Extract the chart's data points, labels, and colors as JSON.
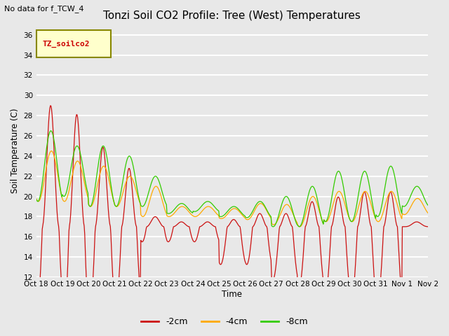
{
  "title": "Tonzi Soil CO2 Profile: Tree (West) Temperatures",
  "subtitle": "No data for f_TCW_4",
  "ylabel": "Soil Temperature (C)",
  "xlabel": "Time",
  "legend_title": "TZ_soilco2",
  "ylim": [
    12,
    37
  ],
  "yticks": [
    12,
    14,
    16,
    18,
    20,
    22,
    24,
    26,
    28,
    30,
    32,
    34,
    36
  ],
  "series_labels": [
    "-2cm",
    "-4cm",
    "-8cm"
  ],
  "series_colors": [
    "#cc1111",
    "#ffaa00",
    "#33cc00"
  ],
  "bg_color": "#e8e8e8",
  "plot_bg": "#e8e8e8",
  "xtick_labels": [
    "Oct 18",
    "Oct 19",
    "Oct 20",
    "Oct 21",
    "Oct 22",
    "Oct 23",
    "Oct 24",
    "Oct 25",
    "Oct 26",
    "Oct 27",
    "Oct 28",
    "Oct 29",
    "Oct 30",
    "Oct 31",
    "Nov 1",
    "Nov 2"
  ],
  "n_days": 15,
  "pts_per_day": 48
}
